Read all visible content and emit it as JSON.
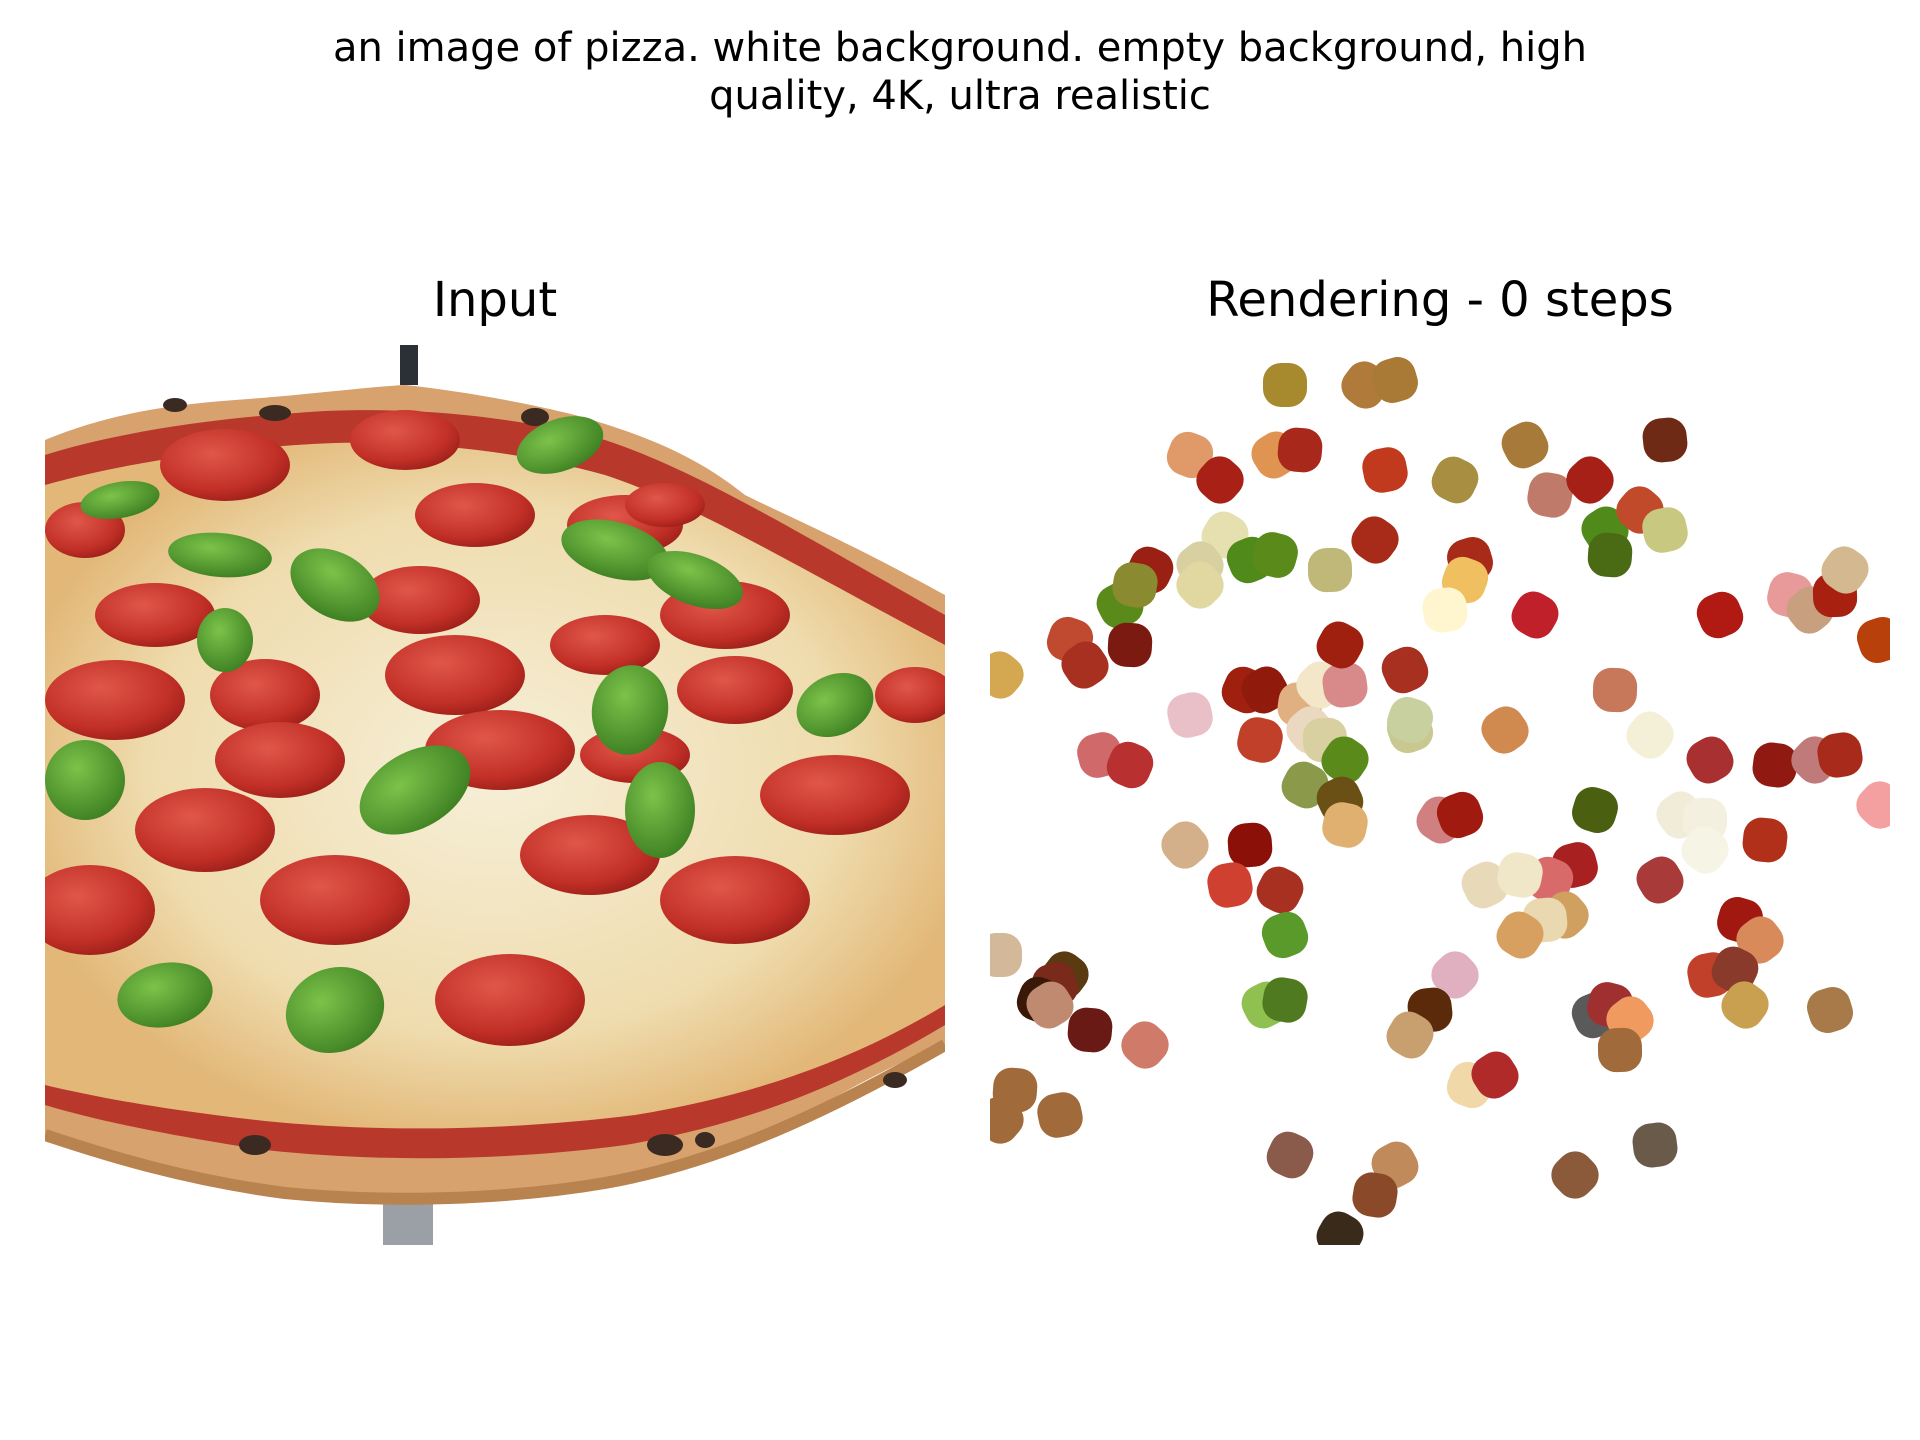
{
  "figure": {
    "suptitle_lines": [
      "an image of pizza. white background. empty background, high",
      "quality, 4K, ultra realistic"
    ]
  },
  "panels": {
    "input_title": "Input",
    "rendering_title": "Rendering - 0 steps"
  },
  "images": {
    "input_image": "photo-of-pepperoni-pizza-with-basil",
    "rendering_image": "scattered-colored-paint-blobs"
  },
  "colors": {
    "sauce": "#c0392b",
    "cheese": "#f3ead2",
    "pepperoni": "#c2332a",
    "basil": "#4c9a2a",
    "crust": "#d9a877",
    "background": "#ffffff"
  }
}
